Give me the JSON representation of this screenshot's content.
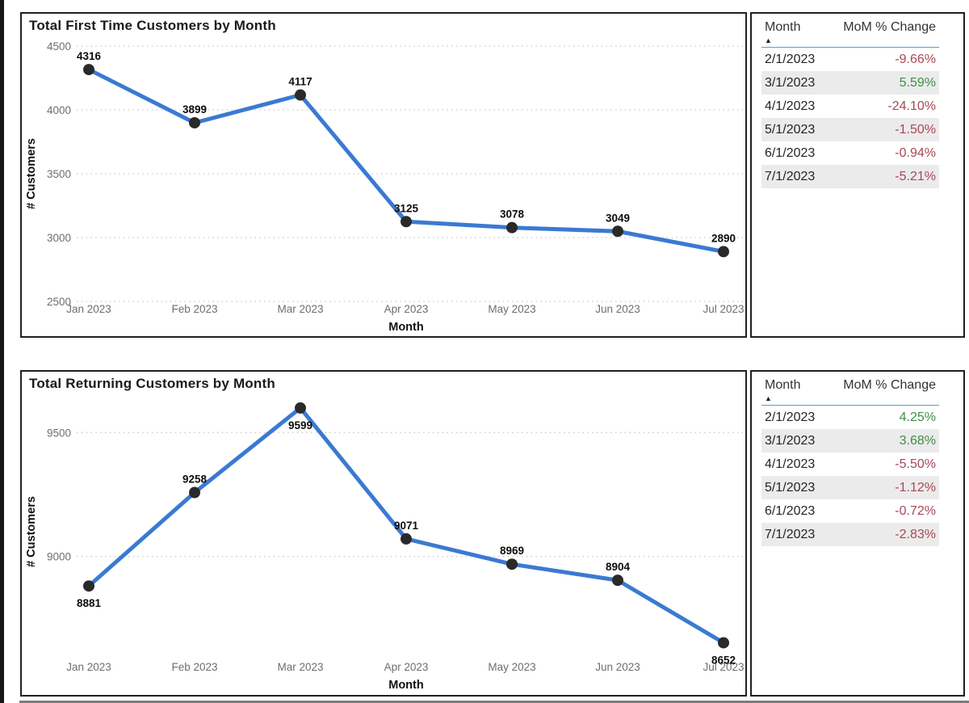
{
  "colors": {
    "line": "#3a7ad1",
    "marker": "#2a2a2a",
    "negative": "#a84757",
    "positive": "#3f8f46",
    "header_underline": "#5b9bd5",
    "row_alt": "#ebebeb",
    "panel_border": "#202020"
  },
  "chart_data": [
    {
      "type": "line",
      "title": "Total First Time Customers by Month",
      "xlabel": "Month",
      "ylabel": "# Customers",
      "categories": [
        "Jan 2023",
        "Feb 2023",
        "Mar 2023",
        "Apr 2023",
        "May 2023",
        "Jun 2023",
        "Jul 2023"
      ],
      "values": [
        4316,
        3899,
        4117,
        3125,
        3078,
        3049,
        2890
      ],
      "ylim": [
        2500,
        4500
      ],
      "yticks": [
        2500,
        3000,
        3500,
        4000,
        4500
      ],
      "grid": "dotted-horizontal",
      "legend": "none",
      "label_positions": [
        "above",
        "above",
        "above",
        "above",
        "above",
        "above",
        "above"
      ]
    },
    {
      "type": "line",
      "title": "Total Returning Customers by Month",
      "xlabel": "Month",
      "ylabel": "# Customers",
      "categories": [
        "Jan 2023",
        "Feb 2023",
        "Mar 2023",
        "Apr 2023",
        "May 2023",
        "Jun 2023",
        "Jul 2023"
      ],
      "values": [
        8881,
        9258,
        9599,
        9071,
        8969,
        8904,
        8652
      ],
      "ylim": [
        8585,
        9615
      ],
      "yticks": [
        9000,
        9500
      ],
      "grid": "dotted-horizontal",
      "legend": "none",
      "label_positions": [
        "below",
        "above",
        "below",
        "above",
        "above",
        "above",
        "below"
      ]
    }
  ],
  "tables": [
    {
      "columns": [
        "Month",
        "MoM % Change"
      ],
      "sort_icon": "▲",
      "rows": [
        {
          "month": "2/1/2023",
          "change": "-9.66%",
          "direction": "negative"
        },
        {
          "month": "3/1/2023",
          "change": "5.59%",
          "direction": "positive"
        },
        {
          "month": "4/1/2023",
          "change": "-24.10%",
          "direction": "negative"
        },
        {
          "month": "5/1/2023",
          "change": "-1.50%",
          "direction": "negative"
        },
        {
          "month": "6/1/2023",
          "change": "-0.94%",
          "direction": "negative"
        },
        {
          "month": "7/1/2023",
          "change": "-5.21%",
          "direction": "negative"
        }
      ]
    },
    {
      "columns": [
        "Month",
        "MoM % Change"
      ],
      "sort_icon": "▲",
      "rows": [
        {
          "month": "2/1/2023",
          "change": "4.25%",
          "direction": "positive"
        },
        {
          "month": "3/1/2023",
          "change": "3.68%",
          "direction": "positive"
        },
        {
          "month": "4/1/2023",
          "change": "-5.50%",
          "direction": "negative"
        },
        {
          "month": "5/1/2023",
          "change": "-1.12%",
          "direction": "negative"
        },
        {
          "month": "6/1/2023",
          "change": "-0.72%",
          "direction": "negative"
        },
        {
          "month": "7/1/2023",
          "change": "-2.83%",
          "direction": "negative"
        }
      ]
    }
  ]
}
